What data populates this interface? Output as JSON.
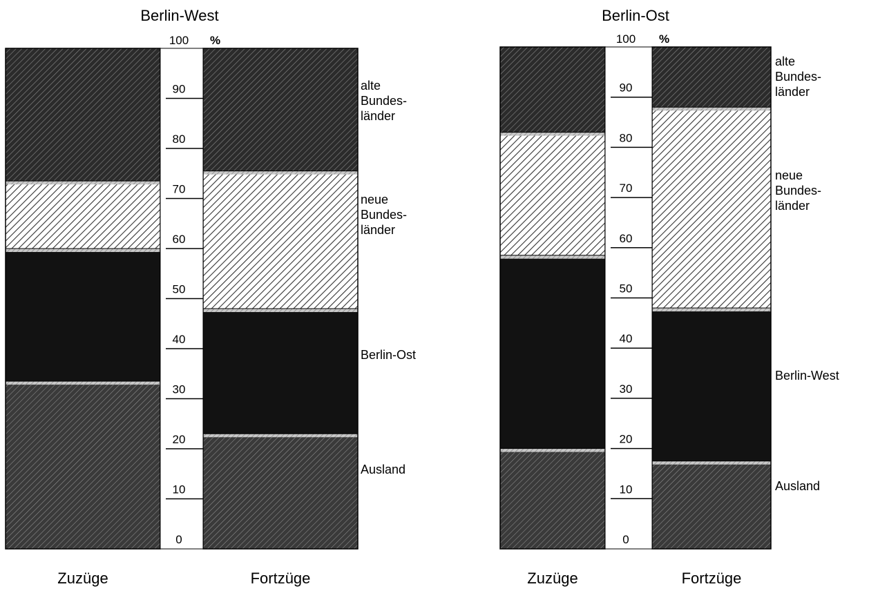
{
  "chart_data": [
    {
      "type": "bar",
      "stacked": true,
      "title": "Berlin-West",
      "unit": "%",
      "ylim": [
        0,
        100
      ],
      "ticks": [
        "0",
        "10",
        "20",
        "30",
        "40",
        "50",
        "60",
        "70",
        "80",
        "90",
        "100"
      ],
      "categories": [
        "Zuzüge",
        "Fortzüge"
      ],
      "series": [
        {
          "name": "Ausland",
          "values": [
            33.5,
            23
          ]
        },
        {
          "name": "Berlin-Ost",
          "values": [
            26.5,
            25
          ]
        },
        {
          "name": "neue Bundes-länder",
          "values": [
            13.5,
            27.5
          ]
        },
        {
          "name": "alte Bundes-länder",
          "values": [
            26.5,
            24.5
          ]
        }
      ]
    },
    {
      "type": "bar",
      "stacked": true,
      "title": "Berlin-Ost",
      "unit": "%",
      "ylim": [
        0,
        100
      ],
      "ticks": [
        "0",
        "10",
        "20",
        "30",
        "40",
        "50",
        "60",
        "70",
        "80",
        "90",
        "100"
      ],
      "categories": [
        "Zuzüge",
        "Fortzüge"
      ],
      "series": [
        {
          "name": "Ausland",
          "values": [
            20,
            17.5
          ]
        },
        {
          "name": "Berlin-West",
          "values": [
            38.5,
            30.5
          ]
        },
        {
          "name": "neue Bundes-länder",
          "values": [
            24.5,
            40
          ]
        },
        {
          "name": "alte Bundes-länder",
          "values": [
            17,
            12
          ]
        }
      ]
    }
  ],
  "series_colors": {
    "Ausland": "#474747",
    "Berlin-Ost": "#151515",
    "Berlin-West": "#151515",
    "neue Bundes-länder": "#d2d2d2",
    "alte Bundes-länder": "#3c3c3c"
  },
  "legend": {
    "panel1": [
      {
        "lines": [
          "alte",
          "Bundes-",
          "länder"
        ]
      },
      {
        "lines": [
          "neue",
          "Bundes-",
          "länder"
        ]
      },
      {
        "lines": [
          "Berlin-Ost"
        ]
      },
      {
        "lines": [
          "Ausland"
        ]
      }
    ],
    "panel2": [
      {
        "lines": [
          "alte",
          "Bundes-",
          "länder"
        ]
      },
      {
        "lines": [
          "neue",
          "Bundes-",
          "länder"
        ]
      },
      {
        "lines": [
          "Berlin-West"
        ]
      },
      {
        "lines": [
          "Ausland"
        ]
      }
    ]
  }
}
